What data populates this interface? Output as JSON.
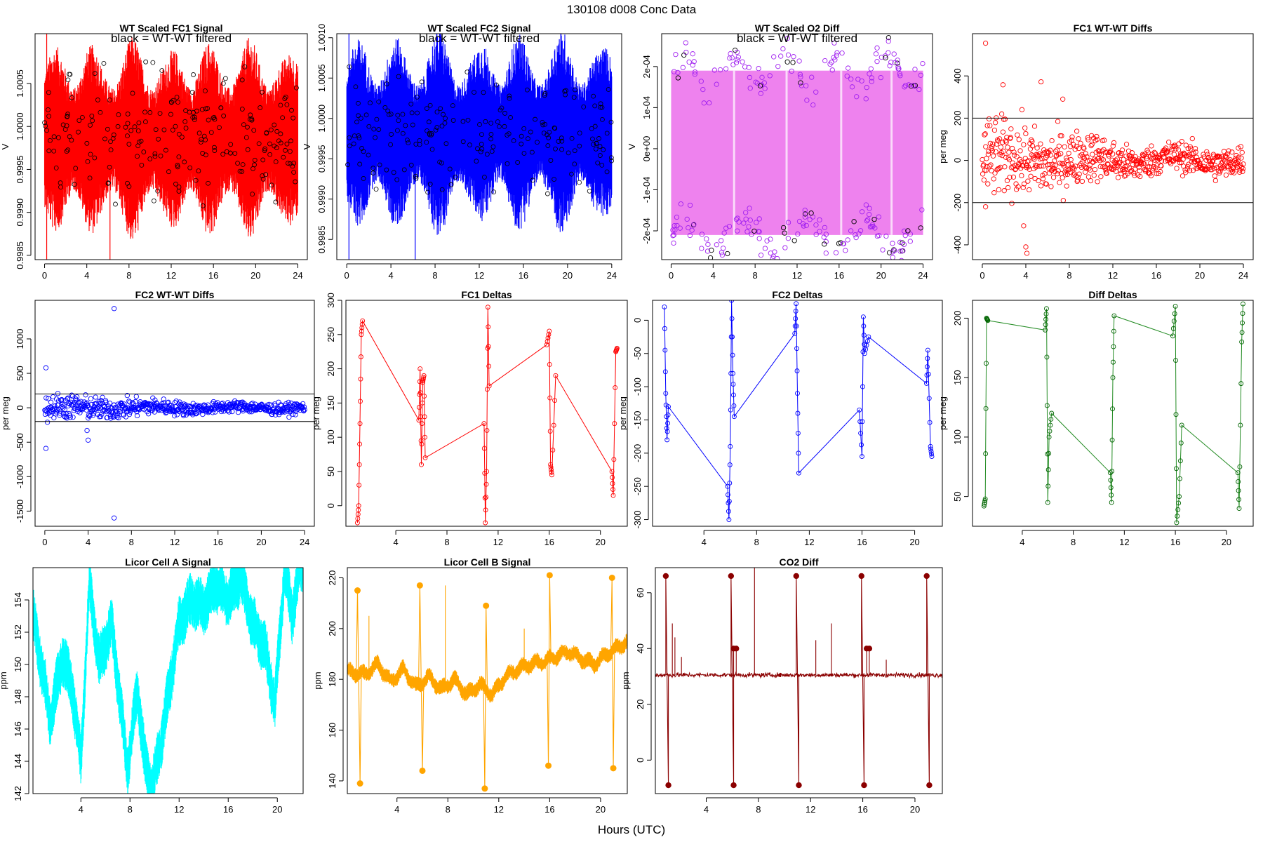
{
  "page": {
    "title": "130108   d008   Conc Data",
    "xlabel": "Hours (UTC)"
  },
  "chart_data": [
    {
      "id": "p1",
      "type": "line",
      "title": "WT Scaled FC1 Signal",
      "note": "black = WT-WT filtered",
      "ylabel": "V",
      "color": "#ff0000",
      "filtered_color": "#000000",
      "xlim": [
        -0.9,
        24.9
      ],
      "ylim": [
        0.99845,
        1.00108
      ],
      "xticks": [
        0,
        4,
        8,
        12,
        16,
        20,
        24
      ],
      "xtick_labels": [
        "0",
        "4",
        "8",
        "12",
        "16",
        "20",
        "24"
      ],
      "yticks": [
        0.9985,
        0.999,
        0.9995,
        1.0,
        1.0005
      ],
      "ytick_labels": [
        "0.9985",
        "0.9990",
        "0.9995",
        "1.0000",
        "1.0005"
      ],
      "render": "band",
      "x_range": [
        0,
        24
      ],
      "center": 0.99985,
      "envelope": [
        0.0006,
        0.0012
      ],
      "filtered_points": 220
    },
    {
      "id": "p2",
      "type": "line",
      "title": "WT Scaled FC2 Signal",
      "note": "black = WT-WT filtered",
      "ylabel": "V",
      "color": "#0000ff",
      "filtered_color": "#000000",
      "xlim": [
        -0.9,
        24.9
      ],
      "ylim": [
        0.99825,
        1.00105
      ],
      "xticks": [
        0,
        4,
        8,
        12,
        16,
        20,
        24
      ],
      "xtick_labels": [
        "0",
        "4",
        "8",
        "12",
        "16",
        "20",
        "24"
      ],
      "yticks": [
        0.9985,
        0.999,
        0.9995,
        1.0,
        1.0005,
        1.001
      ],
      "ytick_labels": [
        "0.9985",
        "0.9990",
        "0.9995",
        "1.0000",
        "1.0005",
        "1.0010"
      ],
      "render": "band",
      "x_range": [
        0,
        24
      ],
      "center": 0.99982,
      "envelope": [
        0.0006,
        0.0013
      ],
      "filtered_points": 200
    },
    {
      "id": "p3",
      "type": "line",
      "title": "WT Scaled O2 Diff",
      "note": "black = WT-WT filtered",
      "ylabel": "V",
      "color": "#ee82ee",
      "point_color": "#a020f0",
      "filtered_color": "#000000",
      "xlim": [
        -0.9,
        24.9
      ],
      "ylim": [
        -0.00027,
        0.00028
      ],
      "xticks": [
        0,
        4,
        8,
        12,
        16,
        20,
        24
      ],
      "xtick_labels": [
        "0",
        "4",
        "8",
        "12",
        "16",
        "20",
        "24"
      ],
      "yticks": [
        -0.0002,
        -0.0001,
        0.0,
        0.0001,
        0.0002
      ],
      "ytick_labels": [
        "-2e-04",
        "-1e-04",
        "0e+00",
        "1e-04",
        "2e-04"
      ],
      "render": "o2band",
      "x_range": [
        0,
        24
      ],
      "upper_level": 0.00019,
      "lower_level": -0.00021,
      "filtered_points": 260
    },
    {
      "id": "p4",
      "type": "scatter",
      "title": "FC1 WT-WT Diffs",
      "ylabel": "per meg",
      "color": "#ff0000",
      "xlim": [
        -0.9,
        24.9
      ],
      "ylim": [
        -470,
        600
      ],
      "xticks": [
        0,
        4,
        8,
        12,
        16,
        20,
        24
      ],
      "xtick_labels": [
        "0",
        "4",
        "8",
        "12",
        "16",
        "20",
        "24"
      ],
      "yticks": [
        -400,
        -200,
        0,
        200,
        400
      ],
      "ytick_labels": [
        "-400",
        "-200",
        "0",
        "200",
        "400"
      ],
      "hlines": [
        200,
        -200
      ],
      "render": "noisy_scatter",
      "x_range": [
        0,
        24
      ],
      "n_points": 620,
      "spread_early": 110,
      "spread_late": 40,
      "highlights": [
        [
          0.3,
          555
        ],
        [
          1.9,
          358
        ],
        [
          5.4,
          372
        ],
        [
          7.4,
          290
        ],
        [
          0.3,
          -220
        ],
        [
          4.0,
          -410
        ],
        [
          4.1,
          -440
        ],
        [
          3.8,
          -310
        ]
      ]
    },
    {
      "id": "p5",
      "type": "scatter",
      "title": "FC2 WT-WT Diffs",
      "ylabel": "per meg",
      "color": "#0000ff",
      "xlim": [
        -0.9,
        24.9
      ],
      "ylim": [
        -1720,
        1560
      ],
      "xticks": [
        0,
        4,
        8,
        12,
        16,
        20,
        24
      ],
      "xtick_labels": [
        "0",
        "4",
        "8",
        "12",
        "16",
        "20",
        "24"
      ],
      "yticks": [
        -1500,
        -1000,
        -500,
        0,
        500,
        1000
      ],
      "ytick_labels": [
        "-1500",
        "-1000",
        "-500",
        "0",
        "500",
        "1000"
      ],
      "hlines": [
        200,
        -200
      ],
      "render": "noisy_scatter",
      "x_range": [
        0,
        24
      ],
      "n_points": 600,
      "spread_early": 110,
      "spread_late": 45,
      "highlights": [
        [
          0.1,
          580
        ],
        [
          0.1,
          -590
        ],
        [
          6.4,
          1440
        ],
        [
          6.4,
          -1600
        ],
        [
          4.0,
          -470
        ],
        [
          3.9,
          -330
        ]
      ]
    },
    {
      "id": "p6",
      "type": "line",
      "title": "FC1 Deltas",
      "ylabel": "per meg",
      "color": "#ff0000",
      "xlim": [
        0.1,
        22.1
      ],
      "ylim": [
        -30,
        300
      ],
      "xticks": [
        4,
        8,
        12,
        16,
        20
      ],
      "xtick_labels": [
        "4",
        "8",
        "12",
        "16",
        "20"
      ],
      "yticks": [
        0,
        50,
        100,
        150,
        200,
        250,
        300
      ],
      "ytick_labels": [
        "0",
        "50",
        "100",
        "150",
        "200",
        "250",
        "300"
      ],
      "render": "sawtooth",
      "segments": [
        [
          [
            1.0,
            -25
          ],
          [
            1.1,
            0
          ],
          [
            1.2,
            120
          ],
          [
            1.3,
            250
          ],
          [
            1.4,
            270
          ]
        ],
        [
          [
            5.8,
            125
          ],
          [
            5.9,
            200
          ],
          [
            6.0,
            60
          ],
          [
            6.1,
            180
          ],
          [
            6.2,
            190
          ],
          [
            6.3,
            70
          ]
        ],
        [
          [
            10.9,
            120
          ],
          [
            11.0,
            -25
          ],
          [
            11.1,
            50
          ],
          [
            11.2,
            290
          ],
          [
            11.3,
            175
          ]
        ],
        [
          [
            15.8,
            235
          ],
          [
            16.0,
            255
          ],
          [
            16.1,
            60
          ],
          [
            16.2,
            45
          ],
          [
            16.5,
            190
          ]
        ],
        [
          [
            20.9,
            50
          ],
          [
            21.0,
            15
          ],
          [
            21.2,
            225
          ],
          [
            21.3,
            230
          ]
        ]
      ]
    },
    {
      "id": "p7",
      "type": "line",
      "title": "FC2 Deltas",
      "ylabel": "per meg",
      "color": "#0000ff",
      "xlim": [
        0.1,
        22.1
      ],
      "ylim": [
        -310,
        30
      ],
      "xticks": [
        4,
        8,
        12,
        16,
        20
      ],
      "xtick_labels": [
        "4",
        "8",
        "12",
        "16",
        "20"
      ],
      "yticks": [
        -300,
        -250,
        -200,
        -150,
        -100,
        -50,
        0
      ],
      "ytick_labels": [
        "-300",
        "-250",
        "-200",
        "-150",
        "-100",
        "-50",
        "0"
      ],
      "render": "sawtooth",
      "segments": [
        [
          [
            1.0,
            20
          ],
          [
            1.1,
            -110
          ],
          [
            1.2,
            -180
          ],
          [
            1.3,
            -130
          ]
        ],
        [
          [
            5.8,
            -250
          ],
          [
            5.9,
            -300
          ],
          [
            6.0,
            -190
          ],
          [
            6.1,
            30
          ],
          [
            6.2,
            -80
          ],
          [
            6.3,
            -145
          ]
        ],
        [
          [
            10.9,
            -20
          ],
          [
            11.0,
            25
          ],
          [
            11.1,
            -110
          ],
          [
            11.2,
            -230
          ]
        ],
        [
          [
            15.8,
            -135
          ],
          [
            16.0,
            -205
          ],
          [
            16.1,
            5
          ],
          [
            16.2,
            -50
          ],
          [
            16.5,
            -25
          ]
        ],
        [
          [
            20.9,
            -95
          ],
          [
            21.0,
            -45
          ],
          [
            21.2,
            -190
          ],
          [
            21.3,
            -205
          ]
        ]
      ]
    },
    {
      "id": "p8",
      "type": "line",
      "title": "Diff Deltas",
      "ylabel": "per meg",
      "color": "#228b22",
      "point_color": "#006400",
      "xlim": [
        0.1,
        22.1
      ],
      "ylim": [
        25,
        215
      ],
      "xticks": [
        4,
        8,
        12,
        16,
        20
      ],
      "xtick_labels": [
        "4",
        "8",
        "12",
        "16",
        "20"
      ],
      "yticks": [
        50,
        100,
        150,
        200
      ],
      "ytick_labels": [
        "50",
        "100",
        "150",
        "200"
      ],
      "render": "sawtooth",
      "segments": [
        [
          [
            1.0,
            42
          ],
          [
            1.1,
            48
          ],
          [
            1.2,
            200
          ],
          [
            1.3,
            198
          ]
        ],
        [
          [
            5.8,
            190
          ],
          [
            5.9,
            208
          ],
          [
            6.0,
            45
          ],
          [
            6.1,
            100
          ],
          [
            6.3,
            120
          ]
        ],
        [
          [
            10.9,
            70
          ],
          [
            11.0,
            45
          ],
          [
            11.1,
            150
          ],
          [
            11.2,
            202
          ]
        ],
        [
          [
            15.8,
            185
          ],
          [
            16.0,
            210
          ],
          [
            16.1,
            28
          ],
          [
            16.3,
            50
          ],
          [
            16.5,
            110
          ]
        ],
        [
          [
            20.9,
            70
          ],
          [
            21.0,
            40
          ],
          [
            21.2,
            180
          ],
          [
            21.3,
            212
          ]
        ]
      ]
    },
    {
      "id": "p9",
      "type": "line",
      "title": "Licor Cell A Signal",
      "ylabel": "ppm",
      "color": "#00ffff",
      "xlim": [
        0.1,
        22.1
      ],
      "ylim": [
        142,
        156
      ],
      "xticks": [
        4,
        8,
        12,
        16,
        20
      ],
      "xtick_labels": [
        "4",
        "8",
        "12",
        "16",
        "20"
      ],
      "yticks": [
        142,
        144,
        146,
        148,
        150,
        152,
        154
      ],
      "ytick_labels": [
        "142",
        "144",
        "146",
        "148",
        "150",
        "152",
        "154"
      ],
      "render": "licor_a",
      "profile": [
        [
          0.1,
          153
        ],
        [
          1.0,
          149
        ],
        [
          1.5,
          146.5
        ],
        [
          2.5,
          150.5
        ],
        [
          3.3,
          148.5
        ],
        [
          4.0,
          144
        ],
        [
          4.7,
          155
        ],
        [
          5.5,
          150
        ],
        [
          6.5,
          152.5
        ],
        [
          7.3,
          147
        ],
        [
          7.8,
          143.5
        ],
        [
          8.6,
          148.5
        ],
        [
          9.2,
          144
        ],
        [
          9.8,
          142.3
        ],
        [
          10.6,
          145.5
        ],
        [
          11.4,
          149.5
        ],
        [
          12.0,
          152.5
        ],
        [
          13.0,
          154
        ],
        [
          14.0,
          153.5
        ],
        [
          15.0,
          155
        ],
        [
          16.0,
          154
        ],
        [
          17.0,
          155.5
        ],
        [
          18.0,
          152.5
        ],
        [
          19.0,
          151
        ],
        [
          19.8,
          147.5
        ],
        [
          20.6,
          156
        ],
        [
          21.2,
          153
        ],
        [
          21.8,
          156
        ]
      ],
      "band_width": 1.6
    },
    {
      "id": "p10",
      "type": "line",
      "title": "Licor Cell B Signal",
      "ylabel": "ppm",
      "color": "#ffa500",
      "xlim": [
        0.1,
        22.1
      ],
      "ylim": [
        135,
        224
      ],
      "xticks": [
        4,
        8,
        12,
        16,
        20
      ],
      "xtick_labels": [
        "4",
        "8",
        "12",
        "16",
        "20"
      ],
      "yticks": [
        140,
        160,
        180,
        200,
        220
      ],
      "ytick_labels": [
        "140",
        "160",
        "180",
        "200",
        "220"
      ],
      "render": "licor_b",
      "baseline": [
        [
          0.1,
          183
        ],
        [
          1.5,
          182
        ],
        [
          2.5,
          186
        ],
        [
          3.5,
          179
        ],
        [
          4.5,
          184
        ],
        [
          5.5,
          177
        ],
        [
          6.5,
          181
        ],
        [
          7.5,
          176
        ],
        [
          8.5,
          180
        ],
        [
          9.5,
          174
        ],
        [
          10.5,
          178
        ],
        [
          11.5,
          174
        ],
        [
          12.5,
          181
        ],
        [
          13.5,
          184
        ],
        [
          14.5,
          186
        ],
        [
          15.5,
          187
        ],
        [
          16.5,
          189
        ],
        [
          17.5,
          191
        ],
        [
          18.5,
          188
        ],
        [
          19.5,
          186
        ],
        [
          20.5,
          190
        ],
        [
          21.5,
          193
        ],
        [
          22.1,
          195
        ]
      ],
      "spikes": [
        [
          0.9,
          215
        ],
        [
          1.1,
          139
        ],
        [
          5.8,
          217
        ],
        [
          6.0,
          144
        ],
        [
          10.9,
          137
        ],
        [
          11.0,
          209
        ],
        [
          15.9,
          146
        ],
        [
          16.0,
          221
        ],
        [
          20.9,
          220
        ],
        [
          21.0,
          145
        ]
      ],
      "line_spikes": [
        [
          1.8,
          205
        ],
        [
          7.8,
          217
        ],
        [
          14.0,
          200
        ]
      ]
    },
    {
      "id": "p11",
      "type": "line",
      "title": "CO2 Diff",
      "ylabel": "ppm",
      "color": "#8b0000",
      "xlim": [
        0.1,
        22.1
      ],
      "ylim": [
        -12,
        69
      ],
      "xticks": [
        4,
        8,
        12,
        16,
        20
      ],
      "xtick_labels": [
        "4",
        "8",
        "12",
        "16",
        "20"
      ],
      "yticks": [
        0,
        20,
        40,
        60
      ],
      "ytick_labels": [
        "0",
        "20",
        "40",
        "60"
      ],
      "render": "co2",
      "baseline": 30.5,
      "switches": [
        [
          0.9,
          66,
          -9
        ],
        [
          5.9,
          66,
          -9
        ],
        [
          6.1,
          40,
          40
        ],
        [
          10.9,
          66,
          -9
        ],
        [
          15.9,
          66,
          -9
        ],
        [
          16.3,
          40,
          40
        ],
        [
          20.9,
          66,
          -9
        ]
      ],
      "line_spikes": [
        [
          1.4,
          49
        ],
        [
          1.6,
          44
        ],
        [
          2.1,
          37
        ],
        [
          7.7,
          69
        ],
        [
          12.4,
          43
        ],
        [
          13.6,
          49
        ],
        [
          17.8,
          36
        ]
      ]
    }
  ]
}
